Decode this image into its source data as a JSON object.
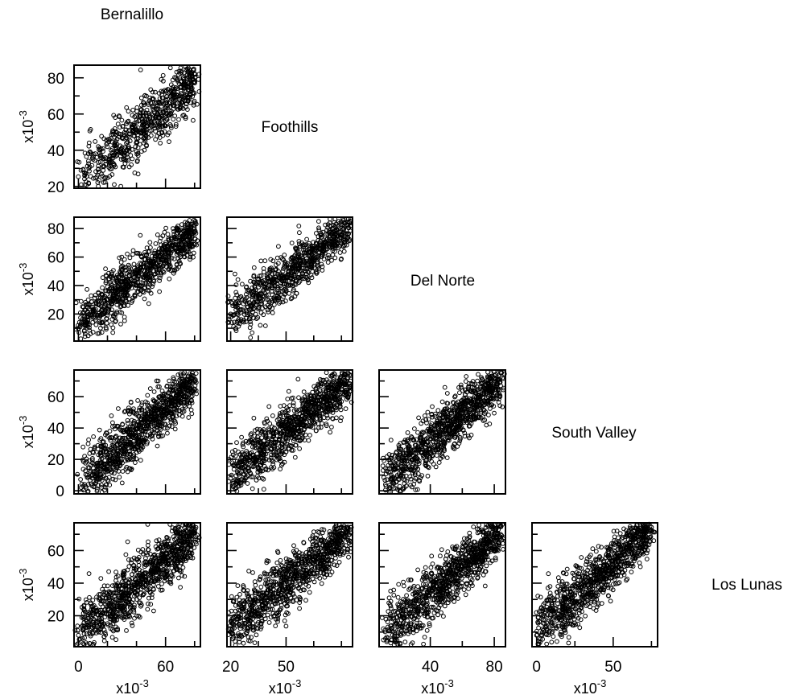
{
  "chart_data": {
    "type": "scatter",
    "layout": "lower-triangular scatterplot matrix",
    "variables": [
      "Bernalillo",
      "Foothills",
      "Del Norte",
      "South Valley",
      "Los Lunas"
    ],
    "x_axis": {
      "Bernalillo": {
        "ticks": [
          0,
          60
        ],
        "minor": [
          0,
          20,
          40,
          60,
          80
        ],
        "xlim": [
          -3,
          84
        ],
        "multiplier": "x10",
        "exponent": "-3"
      },
      "Foothills": {
        "ticks": [
          20,
          50
        ],
        "minor": [
          20,
          35,
          50,
          65,
          80
        ],
        "xlim": [
          18,
          86
        ],
        "multiplier": "x10",
        "exponent": "-3"
      },
      "Del Norte": {
        "ticks": [
          40,
          80
        ],
        "minor": [
          20,
          40,
          60,
          80
        ],
        "xlim": [
          8,
          87
        ],
        "multiplier": "x10",
        "exponent": "-3"
      },
      "South Valley": {
        "ticks": [
          0,
          50
        ],
        "minor": [
          0,
          25,
          50,
          75
        ],
        "xlim": [
          -3,
          79
        ],
        "multiplier": "x10",
        "exponent": "-3"
      }
    },
    "y_axis": {
      "Foothills": {
        "ticks": [
          20,
          40,
          60,
          80
        ],
        "ylim": [
          19,
          87
        ],
        "multiplier": "x10",
        "exponent": "-3"
      },
      "Del Norte": {
        "ticks": [
          20,
          40,
          60,
          80
        ],
        "ylim": [
          1,
          88
        ],
        "multiplier": "x10",
        "exponent": "-3"
      },
      "South Valley": {
        "ticks": [
          0,
          20,
          40,
          60
        ],
        "ylim": [
          -2,
          77
        ],
        "multiplier": "x10",
        "exponent": "-3"
      },
      "Los Lunas": {
        "ticks": [
          20,
          40,
          60
        ],
        "ylim": [
          1,
          77
        ],
        "multiplier": "x10",
        "exponent": "-3"
      }
    },
    "panels": [
      {
        "x": "Bernalillo",
        "y": "Foothills",
        "points_approx": 700,
        "trend": {
          "x_start": 2,
          "y_start": 24,
          "x_end": 80,
          "y_end": 78
        },
        "sample_points": [
          [
            2,
            21
          ],
          [
            5,
            27
          ],
          [
            10,
            35
          ],
          [
            15,
            40
          ],
          [
            20,
            42
          ],
          [
            25,
            44
          ],
          [
            30,
            47
          ],
          [
            35,
            49
          ],
          [
            40,
            50
          ],
          [
            45,
            53
          ],
          [
            50,
            56
          ],
          [
            55,
            58
          ],
          [
            60,
            62
          ],
          [
            65,
            66
          ],
          [
            70,
            70
          ],
          [
            75,
            75
          ],
          [
            80,
            82
          ]
        ]
      },
      {
        "x": "Bernalillo",
        "y": "Del Norte",
        "points_approx": 900,
        "trend": {
          "x_start": 0,
          "y_start": 12,
          "x_end": 80,
          "y_end": 78
        },
        "sample_points": [
          [
            0,
            10
          ],
          [
            10,
            22
          ],
          [
            20,
            30
          ],
          [
            30,
            38
          ],
          [
            40,
            45
          ],
          [
            50,
            52
          ],
          [
            60,
            58
          ],
          [
            70,
            66
          ],
          [
            78,
            76
          ],
          [
            75,
            84
          ]
        ]
      },
      {
        "x": "Foothills",
        "y": "Del Norte",
        "points_approx": 800,
        "trend": {
          "x_start": 20,
          "y_start": 18,
          "x_end": 85,
          "y_end": 82
        },
        "sample_points": [
          [
            20,
            20
          ],
          [
            30,
            28
          ],
          [
            40,
            36
          ],
          [
            50,
            46
          ],
          [
            60,
            56
          ],
          [
            70,
            66
          ],
          [
            80,
            76
          ],
          [
            85,
            82
          ]
        ]
      },
      {
        "x": "Bernalillo",
        "y": "South Valley",
        "points_approx": 1000,
        "trend": {
          "x_start": 2,
          "y_start": 4,
          "x_end": 80,
          "y_end": 70
        },
        "sample_points": [
          [
            2,
            2
          ],
          [
            10,
            12
          ],
          [
            20,
            22
          ],
          [
            30,
            32
          ],
          [
            40,
            40
          ],
          [
            50,
            48
          ],
          [
            60,
            56
          ],
          [
            70,
            64
          ],
          [
            78,
            72
          ]
        ]
      },
      {
        "x": "Foothills",
        "y": "South Valley",
        "points_approx": 1000,
        "trend": {
          "x_start": 20,
          "y_start": 10,
          "x_end": 85,
          "y_end": 70
        },
        "sample_points": [
          [
            20,
            8
          ],
          [
            30,
            20
          ],
          [
            40,
            32
          ],
          [
            50,
            44
          ],
          [
            60,
            52
          ],
          [
            70,
            60
          ],
          [
            80,
            68
          ],
          [
            85,
            70
          ]
        ]
      },
      {
        "x": "Del Norte",
        "y": "South Valley",
        "points_approx": 1000,
        "trend": {
          "x_start": 12,
          "y_start": 6,
          "x_end": 84,
          "y_end": 70
        },
        "sample_points": [
          [
            12,
            4
          ],
          [
            20,
            14
          ],
          [
            30,
            26
          ],
          [
            40,
            38
          ],
          [
            50,
            48
          ],
          [
            60,
            56
          ],
          [
            70,
            63
          ],
          [
            80,
            68
          ],
          [
            84,
            67
          ]
        ]
      },
      {
        "x": "Bernalillo",
        "y": "Los Lunas",
        "points_approx": 1000,
        "trend": {
          "x_start": 0,
          "y_start": 8,
          "x_end": 80,
          "y_end": 70
        },
        "sample_points": [
          [
            0,
            8
          ],
          [
            10,
            16
          ],
          [
            20,
            24
          ],
          [
            30,
            32
          ],
          [
            40,
            40
          ],
          [
            50,
            48
          ],
          [
            60,
            56
          ],
          [
            70,
            64
          ],
          [
            80,
            72
          ]
        ]
      },
      {
        "x": "Foothills",
        "y": "Los Lunas",
        "points_approx": 1000,
        "trend": {
          "x_start": 20,
          "y_start": 12,
          "x_end": 85,
          "y_end": 72
        },
        "sample_points": [
          [
            20,
            10
          ],
          [
            30,
            22
          ],
          [
            40,
            34
          ],
          [
            50,
            46
          ],
          [
            60,
            55
          ],
          [
            70,
            63
          ],
          [
            80,
            70
          ],
          [
            85,
            73
          ]
        ]
      },
      {
        "x": "Del Norte",
        "y": "Los Lunas",
        "points_approx": 1000,
        "trend": {
          "x_start": 12,
          "y_start": 8,
          "x_end": 84,
          "y_end": 72
        },
        "sample_points": [
          [
            12,
            6
          ],
          [
            20,
            14
          ],
          [
            30,
            24
          ],
          [
            40,
            34
          ],
          [
            50,
            44
          ],
          [
            60,
            54
          ],
          [
            70,
            62
          ],
          [
            80,
            70
          ],
          [
            84,
            70
          ]
        ]
      },
      {
        "x": "South Valley",
        "y": "Los Lunas",
        "points_approx": 1000,
        "trend": {
          "x_start": 0,
          "y_start": 10,
          "x_end": 75,
          "y_end": 74
        },
        "sample_points": [
          [
            0,
            8
          ],
          [
            10,
            16
          ],
          [
            20,
            24
          ],
          [
            30,
            32
          ],
          [
            40,
            40
          ],
          [
            50,
            48
          ],
          [
            60,
            58
          ],
          [
            70,
            68
          ],
          [
            75,
            72
          ]
        ]
      }
    ],
    "marker": "open circle",
    "color": "#000000",
    "grid": false,
    "legend": "none"
  }
}
